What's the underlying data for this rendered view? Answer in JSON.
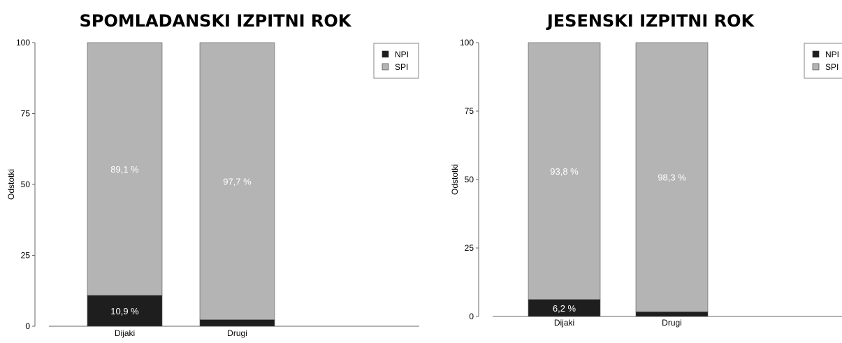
{
  "colors": {
    "npi": "#1e1e1e",
    "spi": "#b4b4b4",
    "axis": "#666666"
  },
  "chart_data": [
    {
      "type": "bar",
      "stacked": true,
      "title": "SPOMLADANSKI IZPITNI ROK",
      "ylabel": "Odstotki",
      "ylim": [
        0,
        100
      ],
      "yticks": [
        "0",
        "25",
        "50",
        "75",
        "100"
      ],
      "categories": [
        "Dijaki",
        "Drugi"
      ],
      "series": [
        {
          "name": "NPI",
          "values": [
            10.9,
            2.3
          ],
          "labels": [
            "10,9 %",
            ""
          ]
        },
        {
          "name": "SPI",
          "values": [
            89.1,
            97.7
          ],
          "labels": [
            "89,1 %",
            "97,7 %"
          ]
        }
      ],
      "legend": "top-right"
    },
    {
      "type": "bar",
      "stacked": true,
      "title": "JESENSKI IZPITNI ROK",
      "ylabel": "Odstotki",
      "ylim": [
        0,
        100
      ],
      "yticks": [
        "0",
        "25",
        "50",
        "75",
        "100"
      ],
      "categories": [
        "Dijaki",
        "Drugi"
      ],
      "series": [
        {
          "name": "NPI",
          "values": [
            6.2,
            1.7
          ],
          "labels": [
            "6,2 %",
            ""
          ]
        },
        {
          "name": "SPI",
          "values": [
            93.8,
            98.3
          ],
          "labels": [
            "93,8 %",
            "98,3 %"
          ]
        }
      ],
      "legend": "top-right"
    }
  ]
}
